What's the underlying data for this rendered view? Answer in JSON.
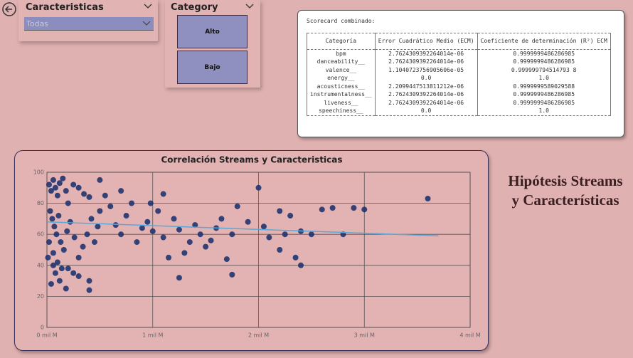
{
  "slicers": [
    {
      "title": "Caracteristicas",
      "selected": "Todas"
    },
    {
      "title": "Category",
      "options": [
        "Alto",
        "Bajo"
      ]
    }
  ],
  "scorecard": {
    "title": "Scorecard combinado:",
    "headers": [
      "Categoría",
      "Error Cuadrático Medio (ECM)",
      "Coeficiente de determinación (R²) ECM"
    ],
    "rows": [
      [
        "bpm",
        "2.7624309392264014e-06",
        "0.9999999486286985"
      ],
      [
        "danceability__",
        "2.7624309392264014e-06",
        "0.9999999486286985"
      ],
      [
        "valence__",
        "1.1040723756905606e-05",
        "0.999999794514793 8"
      ],
      [
        "energy__",
        "0.0",
        "1.0"
      ],
      [
        "acousticness__",
        "2.2099447513811212e-06",
        "0.9999999589029588"
      ],
      [
        "instrumentalness__",
        "2.7624309392264014e-06",
        "0.9999999486286985"
      ],
      [
        "liveness__",
        "2.7624309392264014e-06",
        "0.9999999486286985"
      ],
      [
        "speechiness__",
        "0.0",
        "1.0"
      ]
    ]
  },
  "heading": [
    "Hipótesis Streams",
    "y Características"
  ],
  "chart_data": {
    "type": "scatter",
    "title": "Correlación Streams y Caracteristicas",
    "color": "#1f3470",
    "x": [
      20000000,
      40000000,
      60000000,
      80000000,
      100000000,
      120000000,
      150000000,
      180000000,
      200000000,
      250000000,
      300000000,
      350000000,
      400000000,
      30000000,
      50000000,
      70000000,
      90000000,
      110000000,
      130000000,
      160000000,
      190000000,
      220000000,
      260000000,
      300000000,
      340000000,
      380000000,
      420000000,
      60000000,
      80000000,
      120000000,
      140000000,
      40000000,
      20000000,
      10000000,
      60000000,
      100000000,
      200000000,
      250000000,
      300000000,
      400000000,
      180000000,
      400000000,
      450000000,
      480000000,
      500000000,
      550000000,
      600000000,
      650000000,
      700000000,
      750000000,
      800000000,
      850000000,
      900000000,
      950000000,
      1000000000,
      1050000000,
      1100000000,
      1150000000,
      1200000000,
      1250000000,
      1300000000,
      1350000000,
      1400000000,
      1450000000,
      1500000000,
      1600000000,
      1650000000,
      1700000000,
      1750000000,
      1800000000,
      1900000000,
      2000000000,
      2050000000,
      2100000000,
      2200000000,
      2250000000,
      2300000000,
      2350000000,
      2400000000,
      2500000000,
      2600000000,
      2700000000,
      2800000000,
      2900000000,
      3000000000,
      3600000000,
      1250000000,
      1750000000,
      2200000000,
      2400000000,
      1550000000,
      980000000,
      1100000000,
      700000000,
      500000000
    ],
    "values": [
      92,
      88,
      95,
      90,
      85,
      93,
      96,
      88,
      80,
      92,
      90,
      86,
      84,
      75,
      70,
      65,
      60,
      72,
      55,
      50,
      62,
      68,
      58,
      45,
      52,
      60,
      70,
      40,
      35,
      30,
      38,
      28,
      55,
      45,
      48,
      42,
      38,
      35,
      33,
      30,
      25,
      24,
      55,
      65,
      75,
      85,
      78,
      66,
      60,
      72,
      80,
      55,
      64,
      68,
      62,
      75,
      58,
      45,
      70,
      63,
      48,
      55,
      66,
      60,
      52,
      64,
      70,
      44,
      60,
      78,
      68,
      90,
      65,
      58,
      75,
      60,
      72,
      45,
      62,
      60,
      76,
      77,
      60,
      77,
      76,
      83,
      32,
      34,
      50,
      40,
      56,
      80,
      86,
      88,
      95
    ],
    "trend": {
      "color": "#5aa8d8",
      "x": [
        0,
        3700000000
      ],
      "values": [
        68,
        59
      ]
    },
    "xlim": [
      0,
      4000000000
    ],
    "xticks": [
      {
        "value": 0,
        "label": "0 mil M"
      },
      {
        "value": 1000000000,
        "label": "1 mil M"
      },
      {
        "value": 2000000000,
        "label": "2 mil M"
      },
      {
        "value": 3000000000,
        "label": "3 mil M"
      },
      {
        "value": 4000000000,
        "label": "4 mil M"
      }
    ],
    "ylim": [
      0,
      100
    ],
    "yticks": [
      0,
      20,
      40,
      60,
      80,
      100
    ],
    "grid": true
  }
}
